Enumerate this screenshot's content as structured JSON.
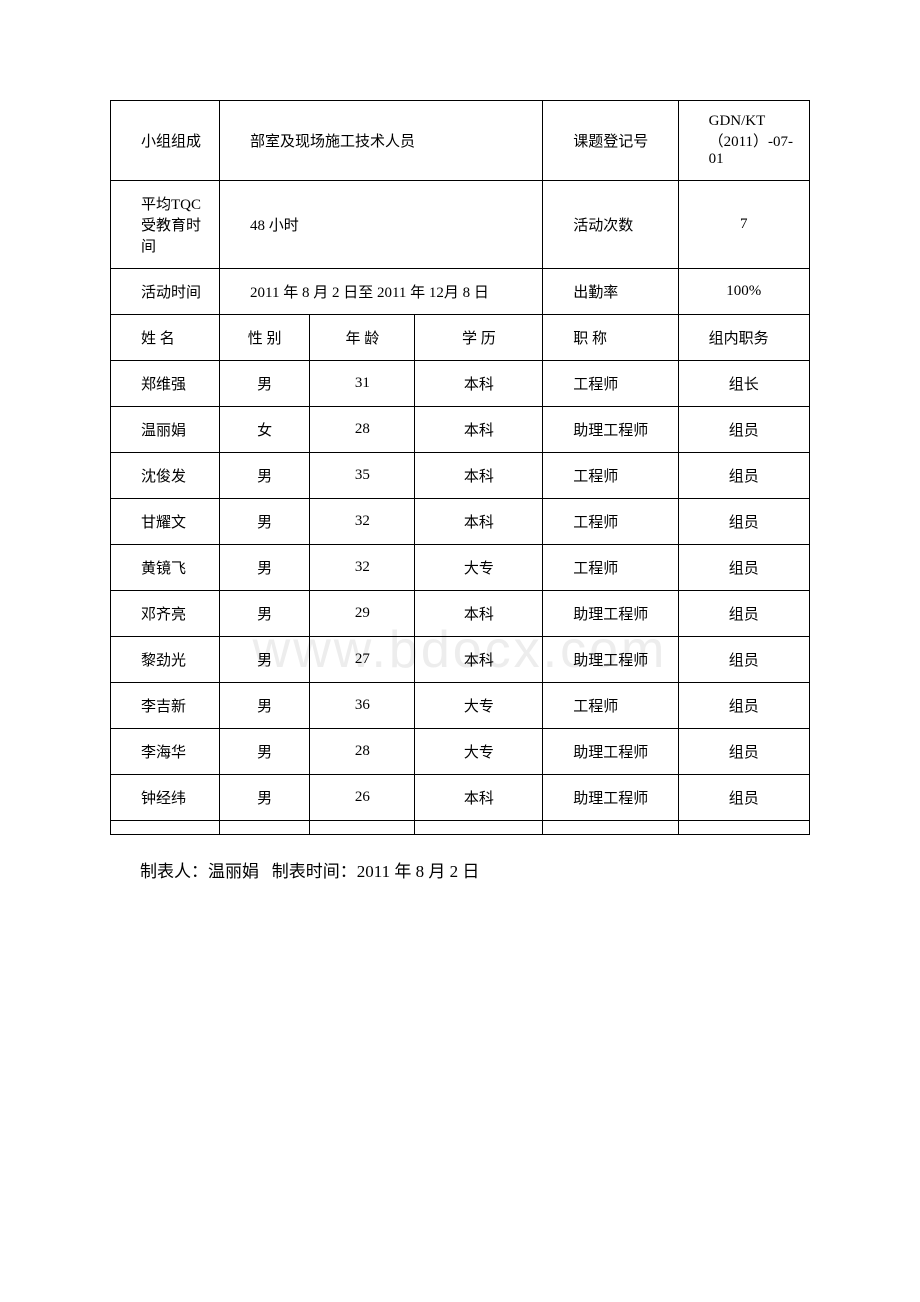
{
  "info_rows": [
    {
      "label1": "小组组成",
      "value1": "部室及现场施工技术人员",
      "label2": "课题登记号",
      "value2": "GDN/KT（2011）-07-01"
    },
    {
      "label1": "平均TQC\n受教育时间",
      "value1": "48 小时",
      "label2": "活动次数",
      "value2": "7"
    },
    {
      "label1": "活动时间",
      "value1": "2011 年 8 月 2 日至 2011 年 12月 8 日",
      "label2": "出勤率",
      "value2": "100%"
    }
  ],
  "headers": {
    "name": "姓 名",
    "gender": "性 别",
    "age": "年 龄",
    "education": "学 历",
    "title": "职 称",
    "role": "组内职务"
  },
  "members": [
    {
      "name": "郑维强",
      "gender": "男",
      "age": "31",
      "education": "本科",
      "title": "工程师",
      "role": "组长"
    },
    {
      "name": "温丽娟",
      "gender": "女",
      "age": "28",
      "education": "本科",
      "title": "助理工程师",
      "role": "组员"
    },
    {
      "name": "沈俊发",
      "gender": "男",
      "age": "35",
      "education": "本科",
      "title": "工程师",
      "role": "组员"
    },
    {
      "name": "甘耀文",
      "gender": "男",
      "age": "32",
      "education": "本科",
      "title": "工程师",
      "role": "组员"
    },
    {
      "name": "黄镜飞",
      "gender": "男",
      "age": "32",
      "education": "大专",
      "title": "工程师",
      "role": "组员"
    },
    {
      "name": "邓齐亮",
      "gender": "男",
      "age": "29",
      "education": "本科",
      "title": "助理工程师",
      "role": "组员"
    },
    {
      "name": "黎劲光",
      "gender": "男",
      "age": "27",
      "education": "本科",
      "title": "助理工程师",
      "role": "组员"
    },
    {
      "name": "李吉新",
      "gender": "男",
      "age": "36",
      "education": "大专",
      "title": "工程师",
      "role": "组员"
    },
    {
      "name": "李海华",
      "gender": "男",
      "age": "28",
      "education": "大专",
      "title": "助理工程师",
      "role": "组员"
    },
    {
      "name": "钟经纬",
      "gender": "男",
      "age": "26",
      "education": "本科",
      "title": "助理工程师",
      "role": "组员"
    }
  ],
  "footer": {
    "compiler_label": "制表人：",
    "compiler_name": "温丽娟",
    "time_label": "制表时间：",
    "time_value": "2011 年 8 月 2 日"
  },
  "watermark_text": "www.bdocx.com",
  "styling": {
    "border_color": "#000000",
    "background_color": "#ffffff",
    "text_color": "#000000",
    "watermark_color": "#ededed",
    "base_font_size": 15,
    "footer_font_size": 17,
    "watermark_font_size": 52
  }
}
